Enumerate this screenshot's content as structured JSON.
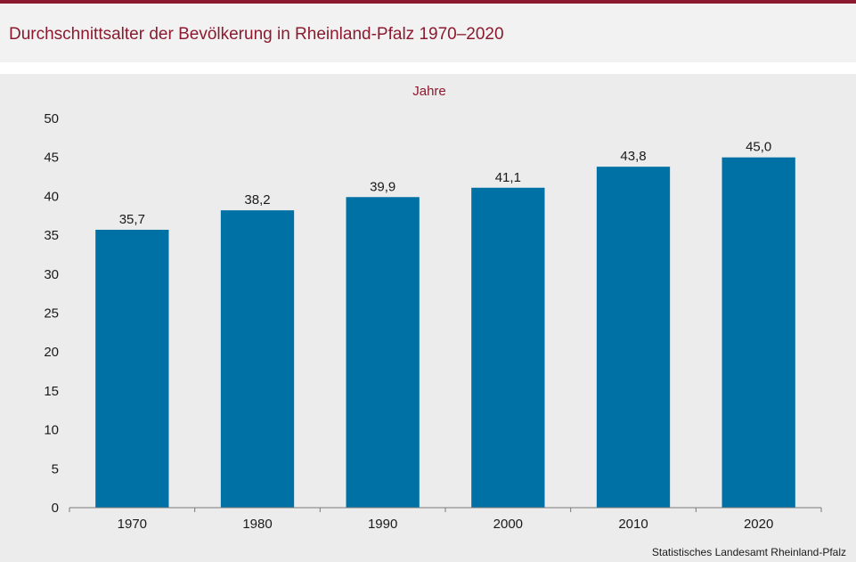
{
  "header": {
    "title": "Durchschnittsalter der Bevölkerung in Rheinland-Pfalz 1970–2020"
  },
  "colors": {
    "accent": "#8b1a2e",
    "bar": "#0071a4",
    "panel_bg": "#ececec",
    "header_bg": "#f2f2f2"
  },
  "chart_data": {
    "type": "bar",
    "ylabel": "Jahre",
    "categories": [
      "1970",
      "1980",
      "1990",
      "2000",
      "2010",
      "2020"
    ],
    "values": [
      35.7,
      38.2,
      39.9,
      41.1,
      43.8,
      45.0
    ],
    "value_labels": [
      "35,7",
      "38,2",
      "39,9",
      "41,1",
      "43,8",
      "45,0"
    ],
    "ylim": [
      0,
      50
    ],
    "yticks": [
      0,
      5,
      10,
      15,
      20,
      25,
      30,
      35,
      40,
      45,
      50
    ],
    "grid": false,
    "legend": "none"
  },
  "footer": {
    "source": "Statistisches Landesamt Rheinland-Pfalz"
  }
}
